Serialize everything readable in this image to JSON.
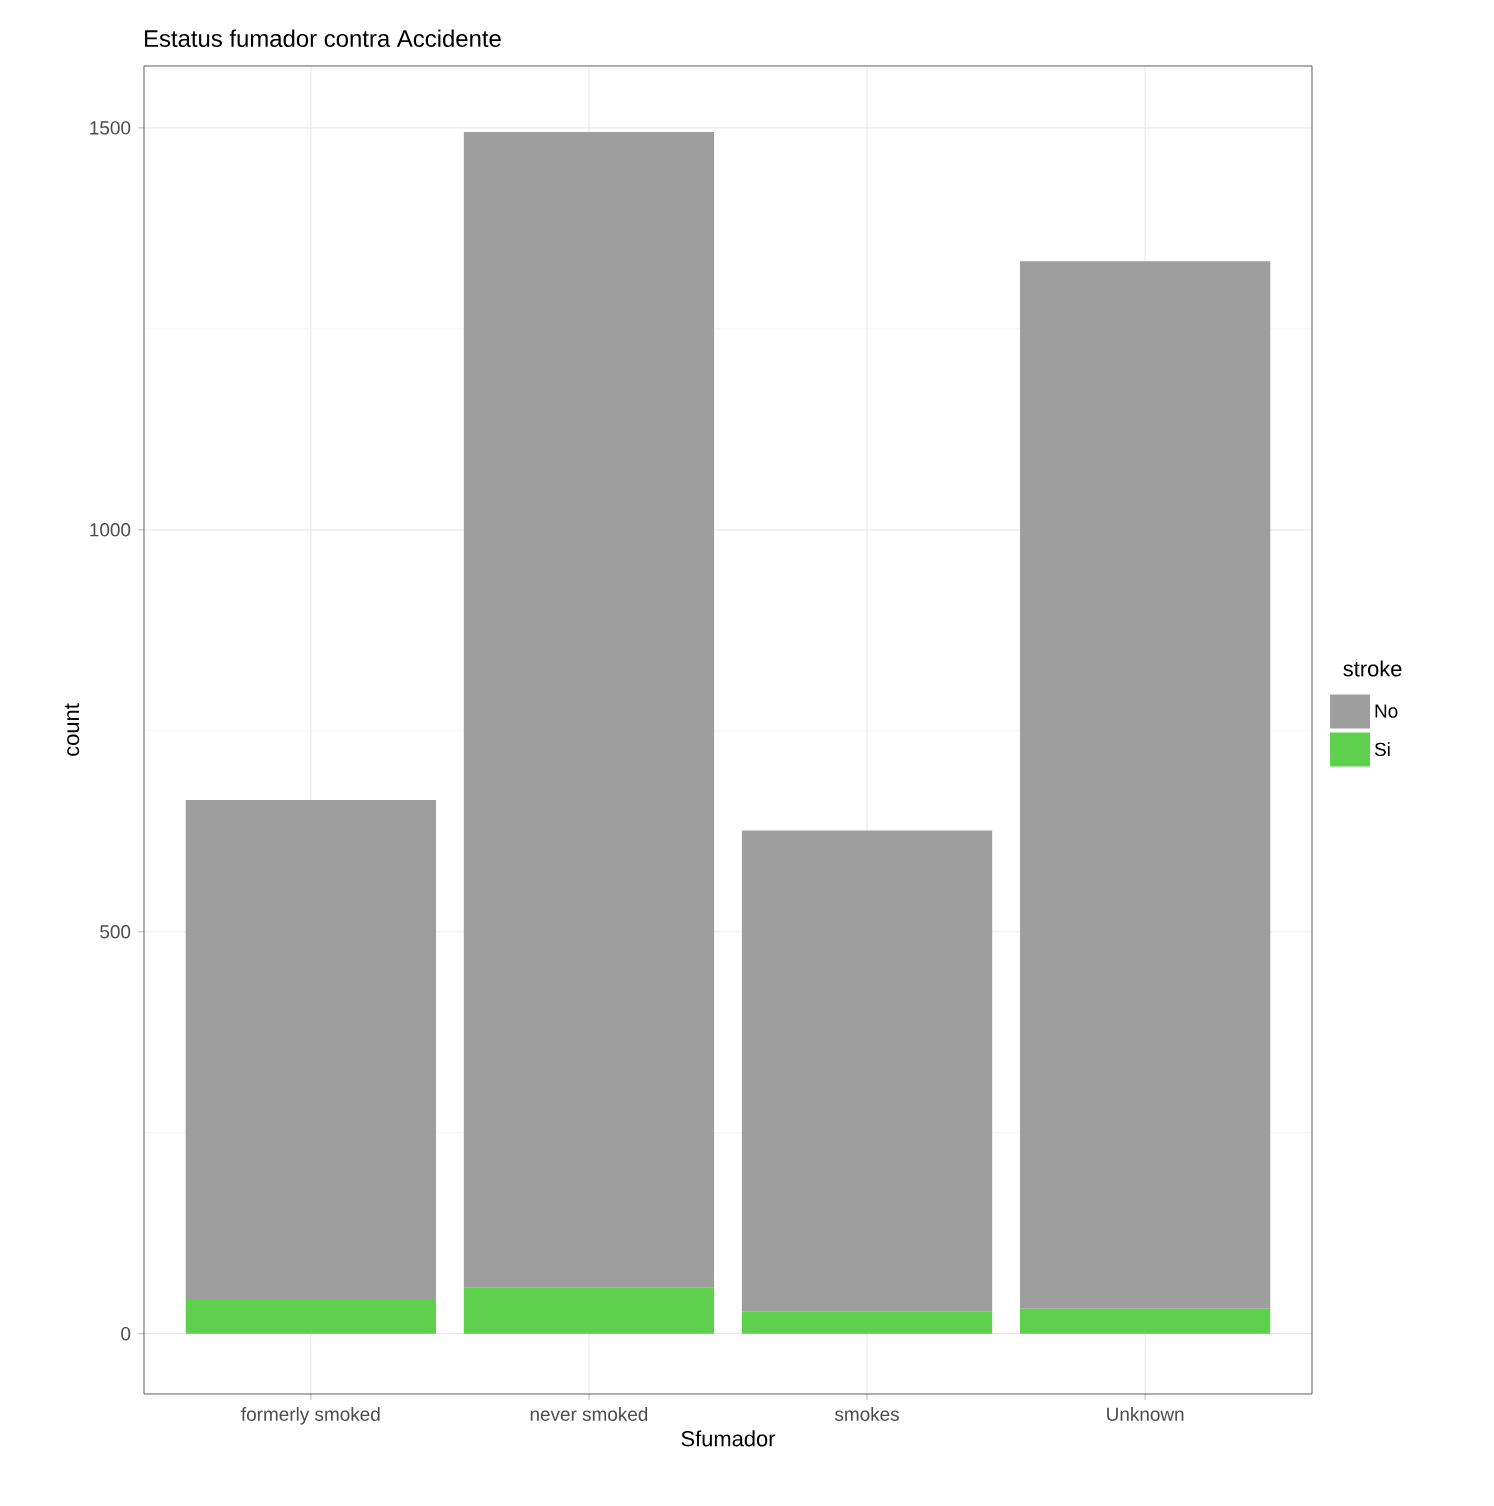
{
  "chart_data": {
    "type": "bar",
    "title": "Estatus fumador contra Accidente",
    "xlabel": "Sfumador",
    "ylabel": "count",
    "legend_title": "stroke",
    "categories": [
      "formerly smoked",
      "never smoked",
      "smokes",
      "Unknown"
    ],
    "stacked": true,
    "series": [
      {
        "name": "Si",
        "color": "#5fd04e",
        "values": [
          42,
          57,
          28,
          31
        ]
      },
      {
        "name": "No",
        "color": "#9e9e9e",
        "values": [
          622,
          1438,
          598,
          1303
        ]
      }
    ],
    "ylim": [
      -75,
      1577
    ],
    "yticks": [
      0,
      500,
      1000,
      1500
    ],
    "grid": true,
    "legend": "right"
  }
}
